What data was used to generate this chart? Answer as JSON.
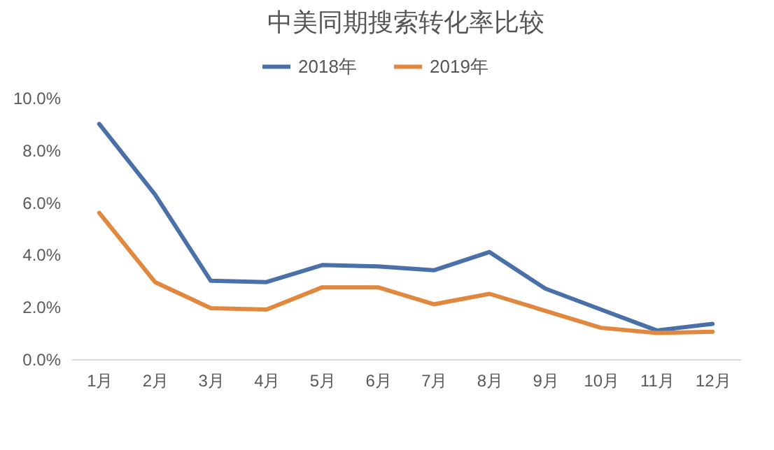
{
  "chart_data": {
    "type": "line",
    "title": "中美同期搜索转化率比较",
    "categories": [
      "1月",
      "2月",
      "3月",
      "4月",
      "5月",
      "6月",
      "7月",
      "8月",
      "9月",
      "10月",
      "11月",
      "12月"
    ],
    "series": [
      {
        "name": "2018年",
        "color": "#4a70aa",
        "values": [
          9.0,
          6.3,
          3.0,
          2.95,
          3.6,
          3.55,
          3.4,
          4.1,
          2.7,
          1.9,
          1.1,
          1.35
        ]
      },
      {
        "name": "2019年",
        "color": "#e2873e",
        "values": [
          5.6,
          2.95,
          1.95,
          1.9,
          2.75,
          2.75,
          2.1,
          2.5,
          1.85,
          1.2,
          1.0,
          1.05
        ]
      }
    ],
    "ylim": [
      0,
      10
    ],
    "yticks": [
      {
        "value": 0,
        "label": "0.0%"
      },
      {
        "value": 2,
        "label": "2.0%"
      },
      {
        "value": 4,
        "label": "4.0%"
      },
      {
        "value": 6,
        "label": "6.0%"
      },
      {
        "value": 8,
        "label": "8.0%"
      },
      {
        "value": 10,
        "label": "10.0%"
      }
    ],
    "grid": false,
    "legend": "top",
    "marker": "none",
    "line_style": "solid"
  }
}
